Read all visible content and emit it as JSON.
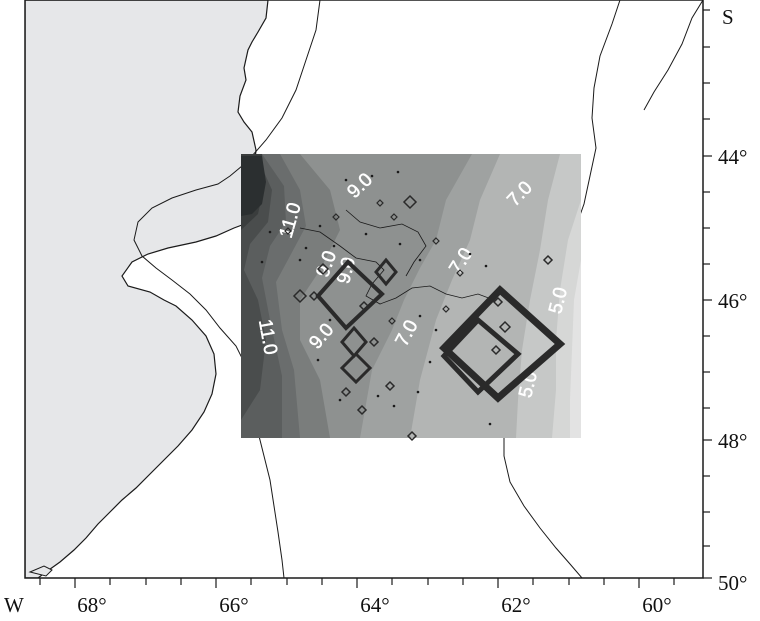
{
  "map": {
    "hemisphere_labels": {
      "west": "W",
      "south": "S"
    },
    "lon_ticks": [
      "68°",
      "66°",
      "64°",
      "62°",
      "60°"
    ],
    "lat_ticks": [
      "44°",
      "46°",
      "48°",
      "50°"
    ],
    "contour_labels": [
      "11.0",
      "9.0",
      "7.0",
      "7.0",
      "5.0",
      "5.0",
      "11.0",
      "9.0",
      "9.0",
      "7.0",
      "9.0"
    ],
    "colors": {
      "land": "#e6e7e9",
      "sea": "#ffffff",
      "coast": "#1a1a1a",
      "shade_darkest": "#2b2f30",
      "shade_lightest": "#e3e3e3",
      "marker": "#2a2a2a"
    }
  }
}
